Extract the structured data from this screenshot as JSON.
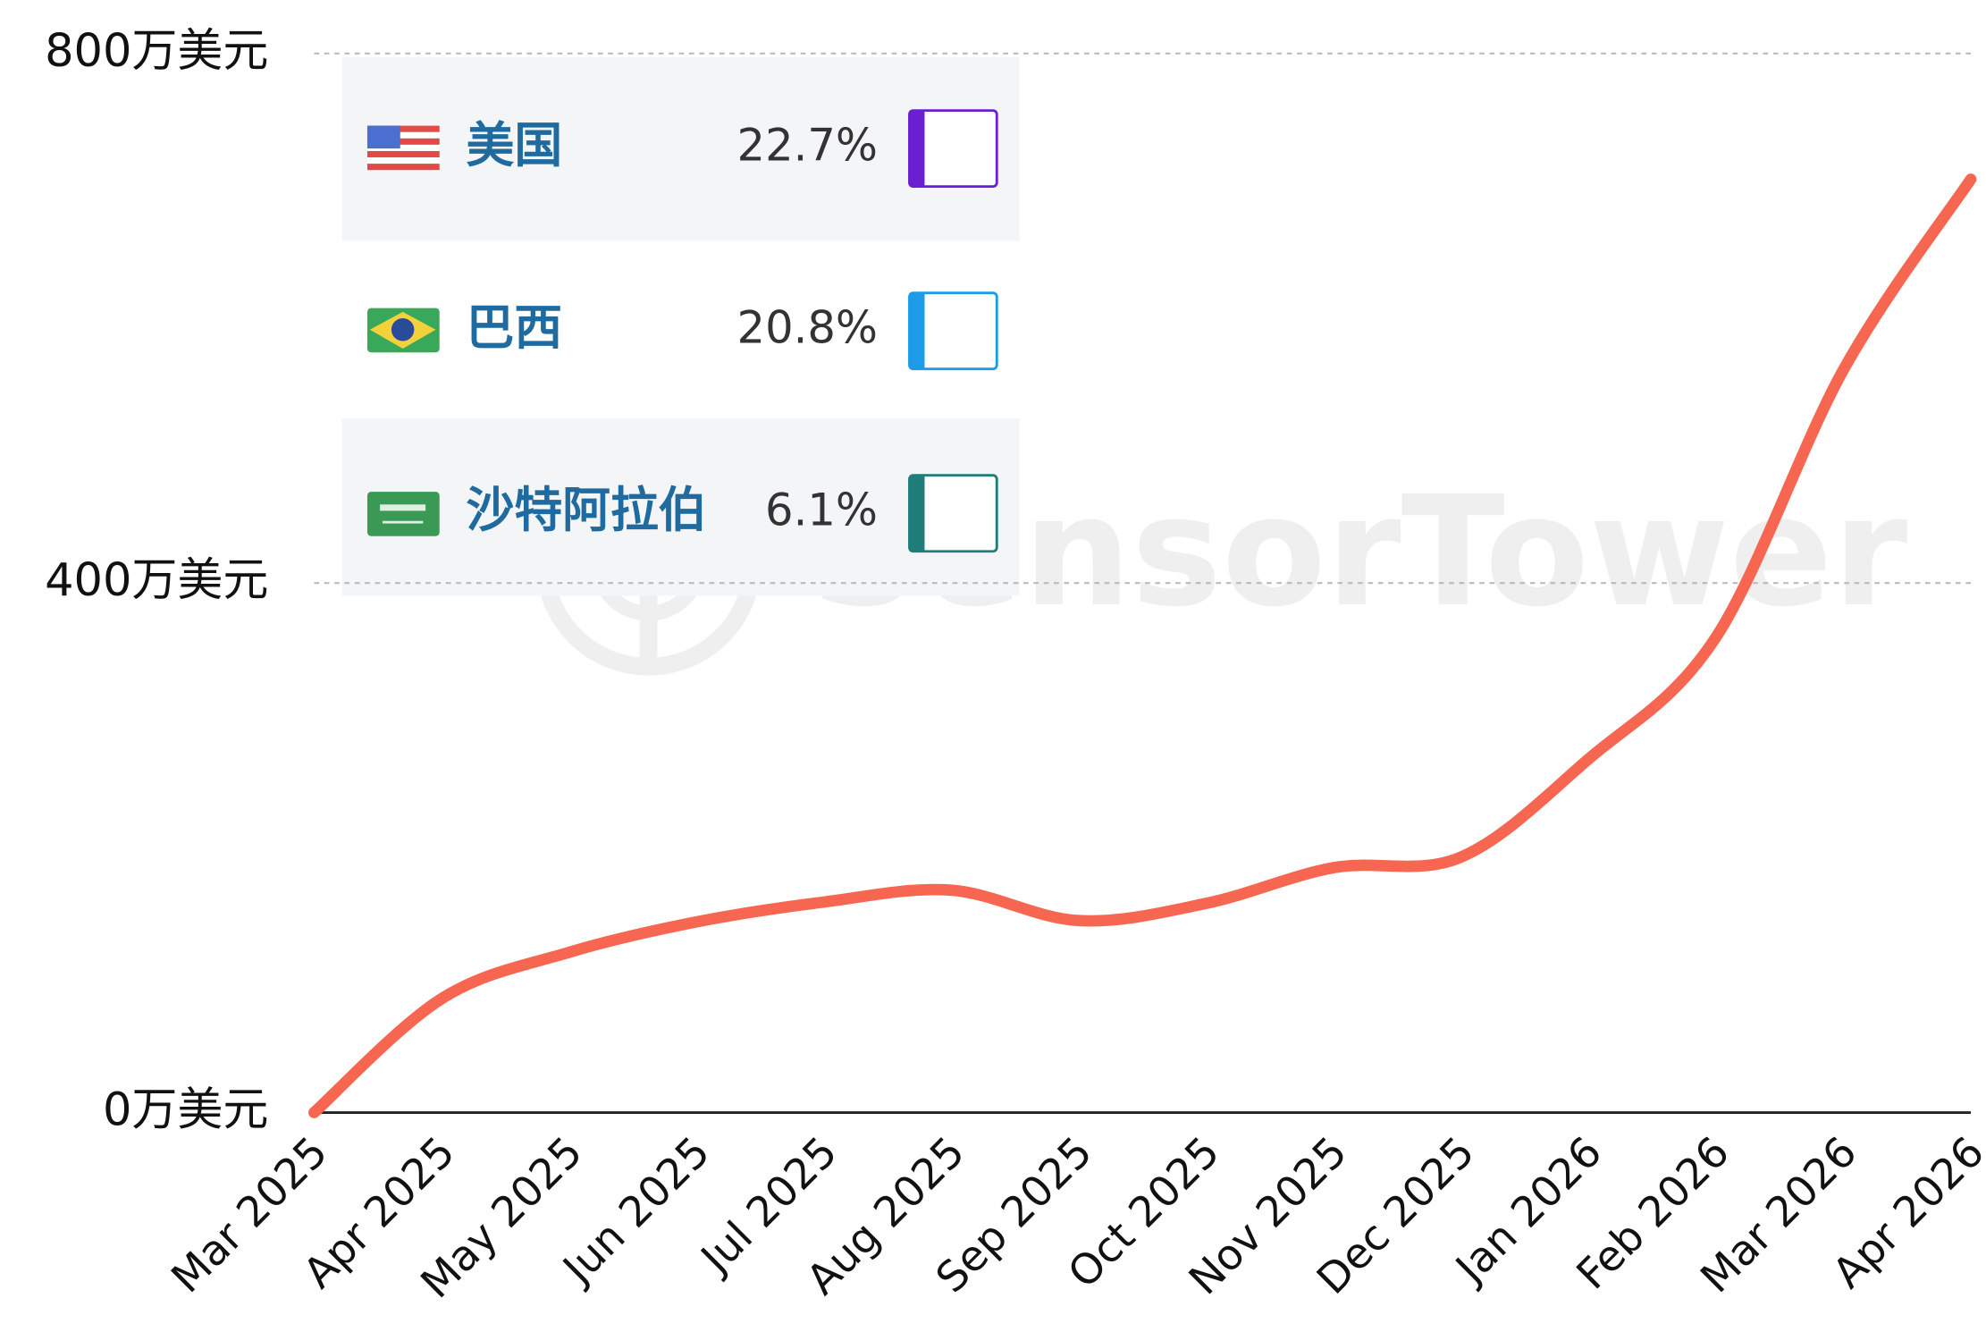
{
  "chart_data": {
    "type": "line",
    "categories": [
      "Mar 2025",
      "Apr 2025",
      "May 2025",
      "Jun 2025",
      "Jul 2025",
      "Aug 2025",
      "Sep 2025",
      "Oct 2025",
      "Nov 2025",
      "Dec 2025",
      "Jan 2026",
      "Feb 2026",
      "Mar 2026",
      "Apr 2026"
    ],
    "series": [
      {
        "color": "#f76650",
        "values": [
          0,
          86,
          121,
          144,
          159,
          168,
          145,
          158,
          185,
          193,
          267,
          359,
          561,
          705
        ]
      }
    ],
    "ylim": [
      0,
      800
    ],
    "yticks": [
      {
        "value": 0,
        "label": "0万美元"
      },
      {
        "value": 400,
        "label": "400万美元"
      },
      {
        "value": 800,
        "label": "800万美元"
      }
    ],
    "grid": true,
    "legend": {
      "names": [
        "美国",
        "巴西",
        "沙特阿拉伯"
      ],
      "values": [
        22.7,
        20.8,
        6.1
      ],
      "value_labels": [
        "22.7%",
        "20.8%",
        "6.1%"
      ],
      "colors": [
        "#6a1fd0",
        "#1e9be8",
        "#1f7d7a"
      ]
    },
    "watermark": "SensorTower"
  }
}
